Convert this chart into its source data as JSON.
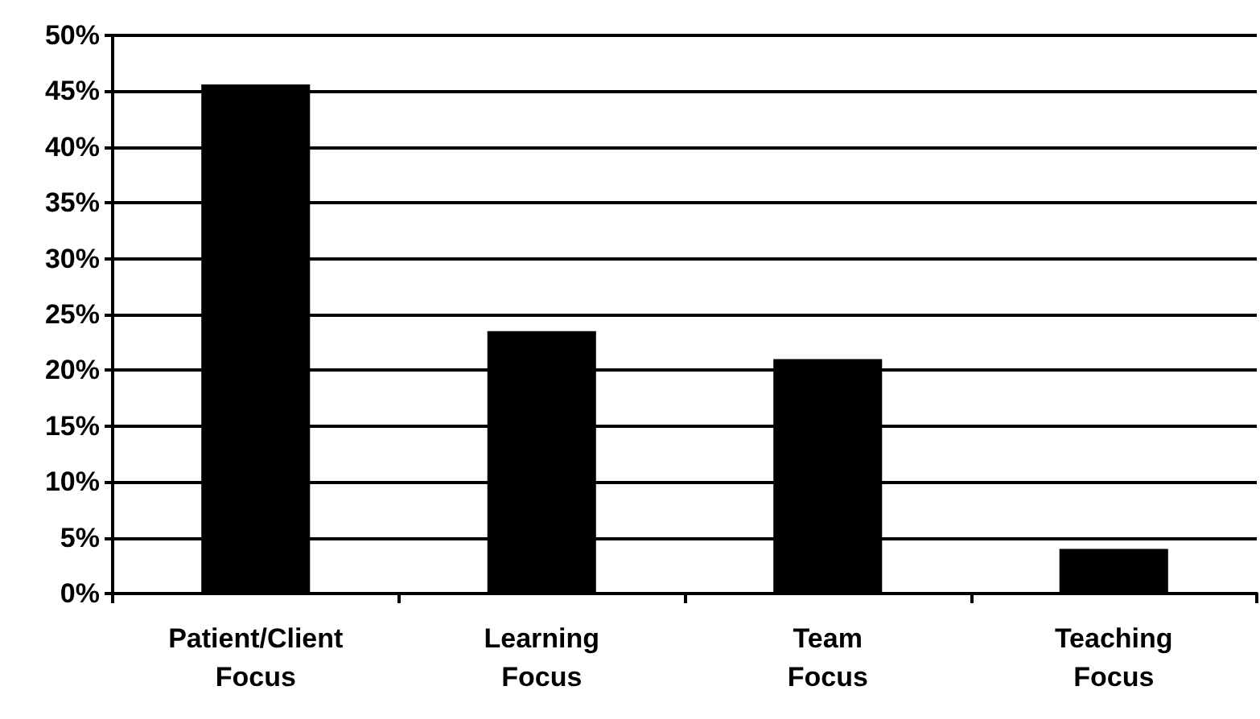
{
  "chart_data": {
    "type": "bar",
    "categories": [
      "Patient/Client Focus",
      "Learning Focus",
      "Team Focus",
      "Teaching Focus"
    ],
    "values": [
      45.6,
      23.5,
      21,
      4
    ],
    "color": "#000000",
    "ylim": [
      0,
      50
    ],
    "yticks": [
      {
        "value": 0,
        "label": "0%"
      },
      {
        "value": 5,
        "label": "5%"
      },
      {
        "value": 10,
        "label": "10%"
      },
      {
        "value": 15,
        "label": "15%"
      },
      {
        "value": 20,
        "label": "20%"
      },
      {
        "value": 25,
        "label": "25%"
      },
      {
        "value": 30,
        "label": "30%"
      },
      {
        "value": 35,
        "label": "35%"
      },
      {
        "value": 40,
        "label": "40%"
      },
      {
        "value": 45,
        "label": "45%"
      },
      {
        "value": 50,
        "label": "50%"
      }
    ],
    "grid": "y"
  }
}
